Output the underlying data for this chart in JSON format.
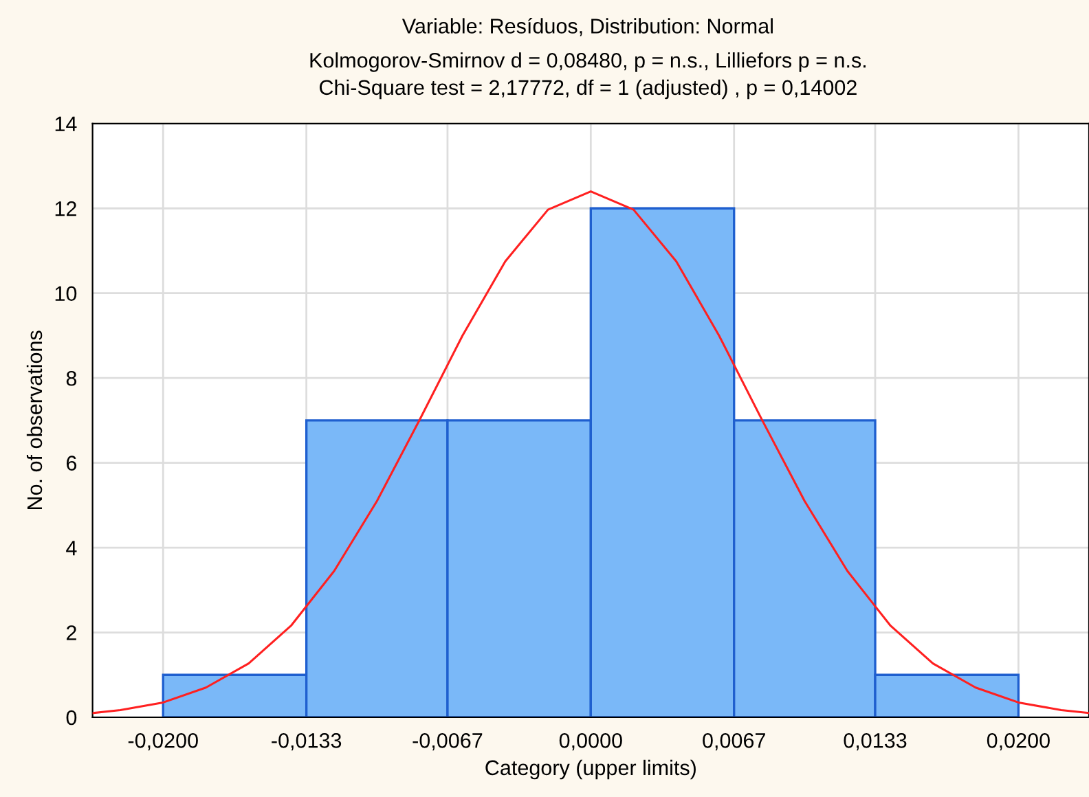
{
  "chart_data": {
    "type": "histogram",
    "title": "Variable: Resíduos, Distribution: Normal",
    "subtitle": "Kolmogorov-Smirnov d = 0,08480, p = n.s., Lilliefors p = n.s.\nChi-Square test = 2,17772, df = 1 (adjusted) , p = 0,14002",
    "xlabel": "Category (upper limits)",
    "ylabel": "No. of observations",
    "bins": [
      -0.02,
      -0.0133,
      -0.0067,
      0.0,
      0.0067,
      0.0133,
      0.02
    ],
    "values": [
      1,
      7,
      7,
      12,
      7,
      1
    ],
    "color": "#7ab8f8",
    "series": [
      {
        "type": "line",
        "color": "#ff2020",
        "x": [
          -0.0233,
          -0.022,
          -0.02,
          -0.018,
          -0.016,
          -0.014,
          -0.012,
          -0.01,
          -0.008,
          -0.006,
          -0.004,
          -0.002,
          0.0,
          0.002,
          0.004,
          0.006,
          0.008,
          0.01,
          0.012,
          0.014,
          0.016,
          0.018,
          0.02,
          0.022,
          0.0233
        ],
        "values": [
          0.1,
          0.17,
          0.35,
          0.7,
          1.27,
          2.17,
          3.45,
          5.1,
          7.02,
          9.0,
          10.75,
          11.97,
          12.4,
          11.97,
          10.75,
          9.0,
          7.02,
          5.1,
          3.45,
          2.17,
          1.27,
          0.7,
          0.35,
          0.17,
          0.1
        ]
      }
    ],
    "xlim": [
      -0.0233,
      0.0233
    ],
    "ylim": [
      0,
      14
    ],
    "xticks": [
      {
        "value": -0.02,
        "label": "-0,0200"
      },
      {
        "value": -0.0133,
        "label": "-0,0133"
      },
      {
        "value": -0.0067,
        "label": "-0,0067"
      },
      {
        "value": 0.0,
        "label": "0,0000"
      },
      {
        "value": 0.0067,
        "label": "0,0067"
      },
      {
        "value": 0.0133,
        "label": "0,0133"
      },
      {
        "value": 0.02,
        "label": "0,0200"
      }
    ],
    "yticks": [
      0,
      2,
      4,
      6,
      8,
      10,
      12,
      14
    ],
    "grid": true
  }
}
